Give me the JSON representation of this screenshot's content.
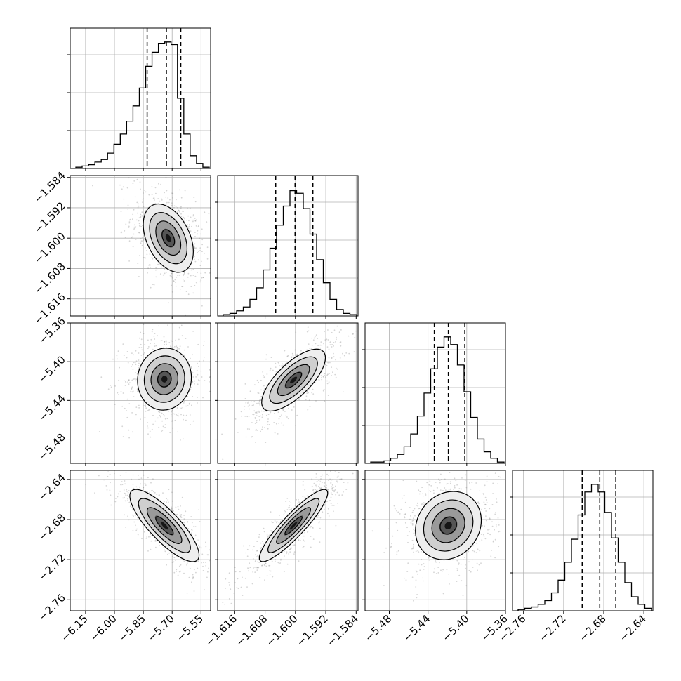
{
  "chart_data": {
    "type": "corner",
    "grid": true,
    "dimensions": [
      {
        "ticks": [
          -6.15,
          -6.0,
          -5.85,
          -5.7,
          -5.55
        ],
        "tick_labels": [
          "−6.15",
          "−6.00",
          "−5.85",
          "−5.70",
          "−5.55"
        ],
        "range": [
          -6.23,
          -5.5
        ],
        "quantiles": [
          -5.83,
          -5.73,
          -5.655
        ],
        "mode": -5.72
      },
      {
        "ticks": [
          -1.616,
          -1.608,
          -1.6,
          -1.592,
          -1.584
        ],
        "tick_labels": [
          "−1.616",
          "−1.608",
          "−1.600",
          "−1.592",
          "−1.584"
        ],
        "range": [
          -1.6205,
          -1.5835
        ],
        "quantiles": [
          -1.6052,
          -1.6001,
          -1.5954
        ],
        "mode": -1.6
      },
      {
        "ticks": [
          -5.48,
          -5.44,
          -5.4,
          -5.36
        ],
        "tick_labels": [
          "−5.48",
          "−5.44",
          "−5.40",
          "−5.36"
        ],
        "range": [
          -5.505,
          -5.36
        ],
        "quantiles": [
          -5.4335,
          -5.419,
          -5.402
        ],
        "mode": -5.418
      },
      {
        "ticks": [
          -2.76,
          -2.72,
          -2.68,
          -2.64
        ],
        "tick_labels": [
          "−2.76",
          "−2.72",
          "−2.68",
          "−2.64"
        ],
        "range": [
          -2.771,
          -2.631
        ],
        "quantiles": [
          -2.7015,
          -2.684,
          -2.668
        ],
        "mode": -2.684
      }
    ],
    "histograms": [
      {
        "dim": 0,
        "counts": [
          0.01,
          0.02,
          0.03,
          0.05,
          0.07,
          0.12,
          0.19,
          0.27,
          0.37,
          0.49,
          0.63,
          0.8,
          0.91,
          0.98,
          0.99,
          0.97,
          0.55,
          0.27,
          0.1,
          0.04,
          0.01
        ]
      },
      {
        "dim": 1,
        "counts": [
          0.01,
          0.02,
          0.04,
          0.07,
          0.13,
          0.22,
          0.36,
          0.53,
          0.71,
          0.86,
          0.98,
          0.96,
          0.84,
          0.64,
          0.44,
          0.26,
          0.13,
          0.05,
          0.02,
          0.01
        ]
      },
      {
        "dim": 2,
        "counts": [
          0.01,
          0.01,
          0.02,
          0.04,
          0.07,
          0.13,
          0.23,
          0.37,
          0.55,
          0.74,
          0.91,
          0.99,
          0.93,
          0.77,
          0.56,
          0.36,
          0.19,
          0.09,
          0.04,
          0.01
        ]
      },
      {
        "dim": 3,
        "counts": [
          0.01,
          0.02,
          0.03,
          0.05,
          0.08,
          0.14,
          0.24,
          0.38,
          0.56,
          0.75,
          0.93,
          0.99,
          0.93,
          0.77,
          0.57,
          0.38,
          0.22,
          0.11,
          0.05,
          0.02
        ]
      }
    ],
    "pairs": [
      {
        "row": 1,
        "col": 0,
        "center": [
          -5.72,
          -1.6
        ],
        "sigma": [
          0.065,
          0.0045
        ],
        "rho": -0.4
      },
      {
        "row": 2,
        "col": 0,
        "center": [
          -5.74,
          -5.418
        ],
        "sigma": [
          0.07,
          0.016
        ],
        "rho": 0.05
      },
      {
        "row": 2,
        "col": 1,
        "center": [
          -1.6005,
          -5.419
        ],
        "sigma": [
          0.0042,
          0.016
        ],
        "rho": 0.72
      },
      {
        "row": 3,
        "col": 0,
        "center": [
          -5.74,
          -2.686
        ],
        "sigma": [
          0.09,
          0.018
        ],
        "rho": -0.82
      },
      {
        "row": 3,
        "col": 1,
        "center": [
          -1.6005,
          -2.686
        ],
        "sigma": [
          0.0045,
          0.018
        ],
        "rho": 0.9
      },
      {
        "row": 3,
        "col": 2,
        "center": [
          -5.419,
          -2.686
        ],
        "sigma": [
          0.017,
          0.017
        ],
        "rho": 0.15
      }
    ],
    "contour_levels_sigma": [
      0.5,
      1.0,
      1.5,
      2.0
    ],
    "colors": {
      "line": "#000000",
      "grid": "#b0b0b0",
      "points": "#888888",
      "density": "#000000"
    }
  }
}
